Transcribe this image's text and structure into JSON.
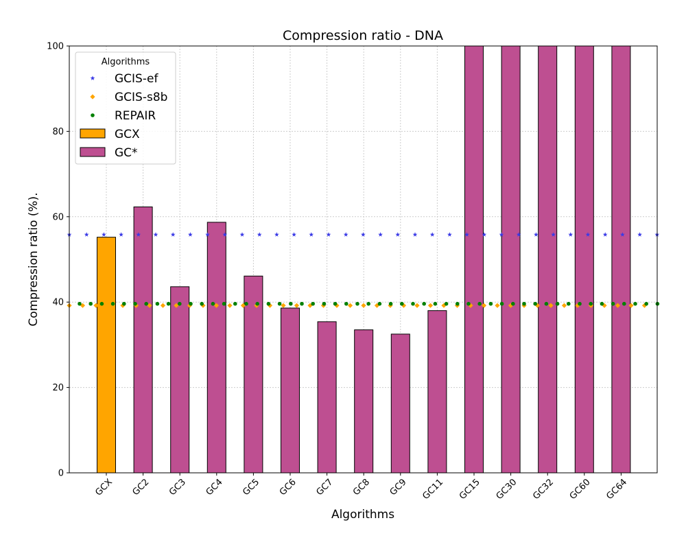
{
  "chart_data": {
    "type": "bar",
    "title": "Compression ratio -  DNA",
    "xlabel": "Algorithms",
    "ylabel": "Compression ratio (%).",
    "ylim": [
      0,
      100
    ],
    "yticks": [
      0,
      20,
      40,
      60,
      80,
      100
    ],
    "grid": true,
    "categories": [
      "GCX",
      "GC2",
      "GC3",
      "GC4",
      "GC5",
      "GC6",
      "GC7",
      "GC8",
      "GC9",
      "GC11",
      "GC15",
      "GC30",
      "GC32",
      "GC60",
      "GC64"
    ],
    "series": [
      {
        "name": "GCX",
        "color": "#FFA500",
        "values": [
          55.2,
          null,
          null,
          null,
          null,
          null,
          null,
          null,
          null,
          null,
          null,
          null,
          null,
          null,
          null
        ]
      },
      {
        "name": "GC*",
        "color": "#BE4F91",
        "values": [
          null,
          62.3,
          43.6,
          58.7,
          46.1,
          38.6,
          35.4,
          33.5,
          32.5,
          38.0,
          100,
          100,
          100,
          100,
          100
        ]
      }
    ],
    "reference_lines": [
      {
        "name": "GCIS-ef",
        "color": "#3A3AE6",
        "marker": "star",
        "value": 55.8
      },
      {
        "name": "GCIS-s8b",
        "color": "#FFA500",
        "marker": "diamond",
        "value": 39.2
      },
      {
        "name": "REPAIR",
        "color": "#008000",
        "marker": "circle",
        "value": 39.6
      }
    ],
    "legend": {
      "title": "Algorithms",
      "placement": "top-left"
    }
  }
}
